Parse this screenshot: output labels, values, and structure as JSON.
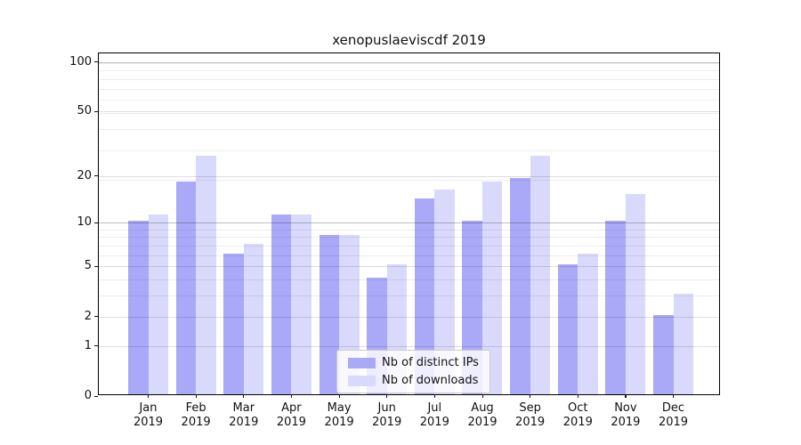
{
  "title": "xenopuslaeviscdf 2019",
  "chart_data": {
    "type": "bar",
    "title": "xenopuslaeviscdf 2019",
    "categories": [
      "Jan",
      "Feb",
      "Mar",
      "Apr",
      "May",
      "Jun",
      "Jul",
      "Aug",
      "Sep",
      "Oct",
      "Nov",
      "Dec"
    ],
    "year": "2019",
    "series": [
      {
        "name": "Nb of distinct IPs",
        "color": "#a9a9f8",
        "values": [
          10,
          18,
          6,
          11,
          8,
          4,
          14,
          10,
          19,
          5,
          10,
          2
        ]
      },
      {
        "name": "Nb of downloads",
        "color": "#d9d9fb",
        "values": [
          11,
          26,
          7,
          11,
          8,
          5,
          16,
          18,
          26,
          6,
          15,
          3
        ]
      }
    ],
    "xlabel": "",
    "ylabel": "",
    "yscale": "log1p",
    "ylim": [
      0,
      113
    ],
    "yticks": [
      0,
      1,
      2,
      5,
      10,
      20,
      50,
      100
    ],
    "gridlines": {
      "strong": [
        10,
        100
      ],
      "medium": [
        1,
        2,
        5,
        20,
        50
      ],
      "light": [
        3,
        4,
        6,
        7,
        8,
        9,
        19,
        29,
        39,
        49,
        59,
        69,
        79,
        89,
        99
      ]
    },
    "grid": true,
    "legend_position": "lower center",
    "colors": {
      "grid_strong": "rgba(0,0,0,0.25)",
      "grid_medium": "rgba(0,0,0,0.13)",
      "grid_light": "rgba(0,0,0,0.07)",
      "spine": "#000000",
      "legend_border": "#cccccc"
    }
  }
}
